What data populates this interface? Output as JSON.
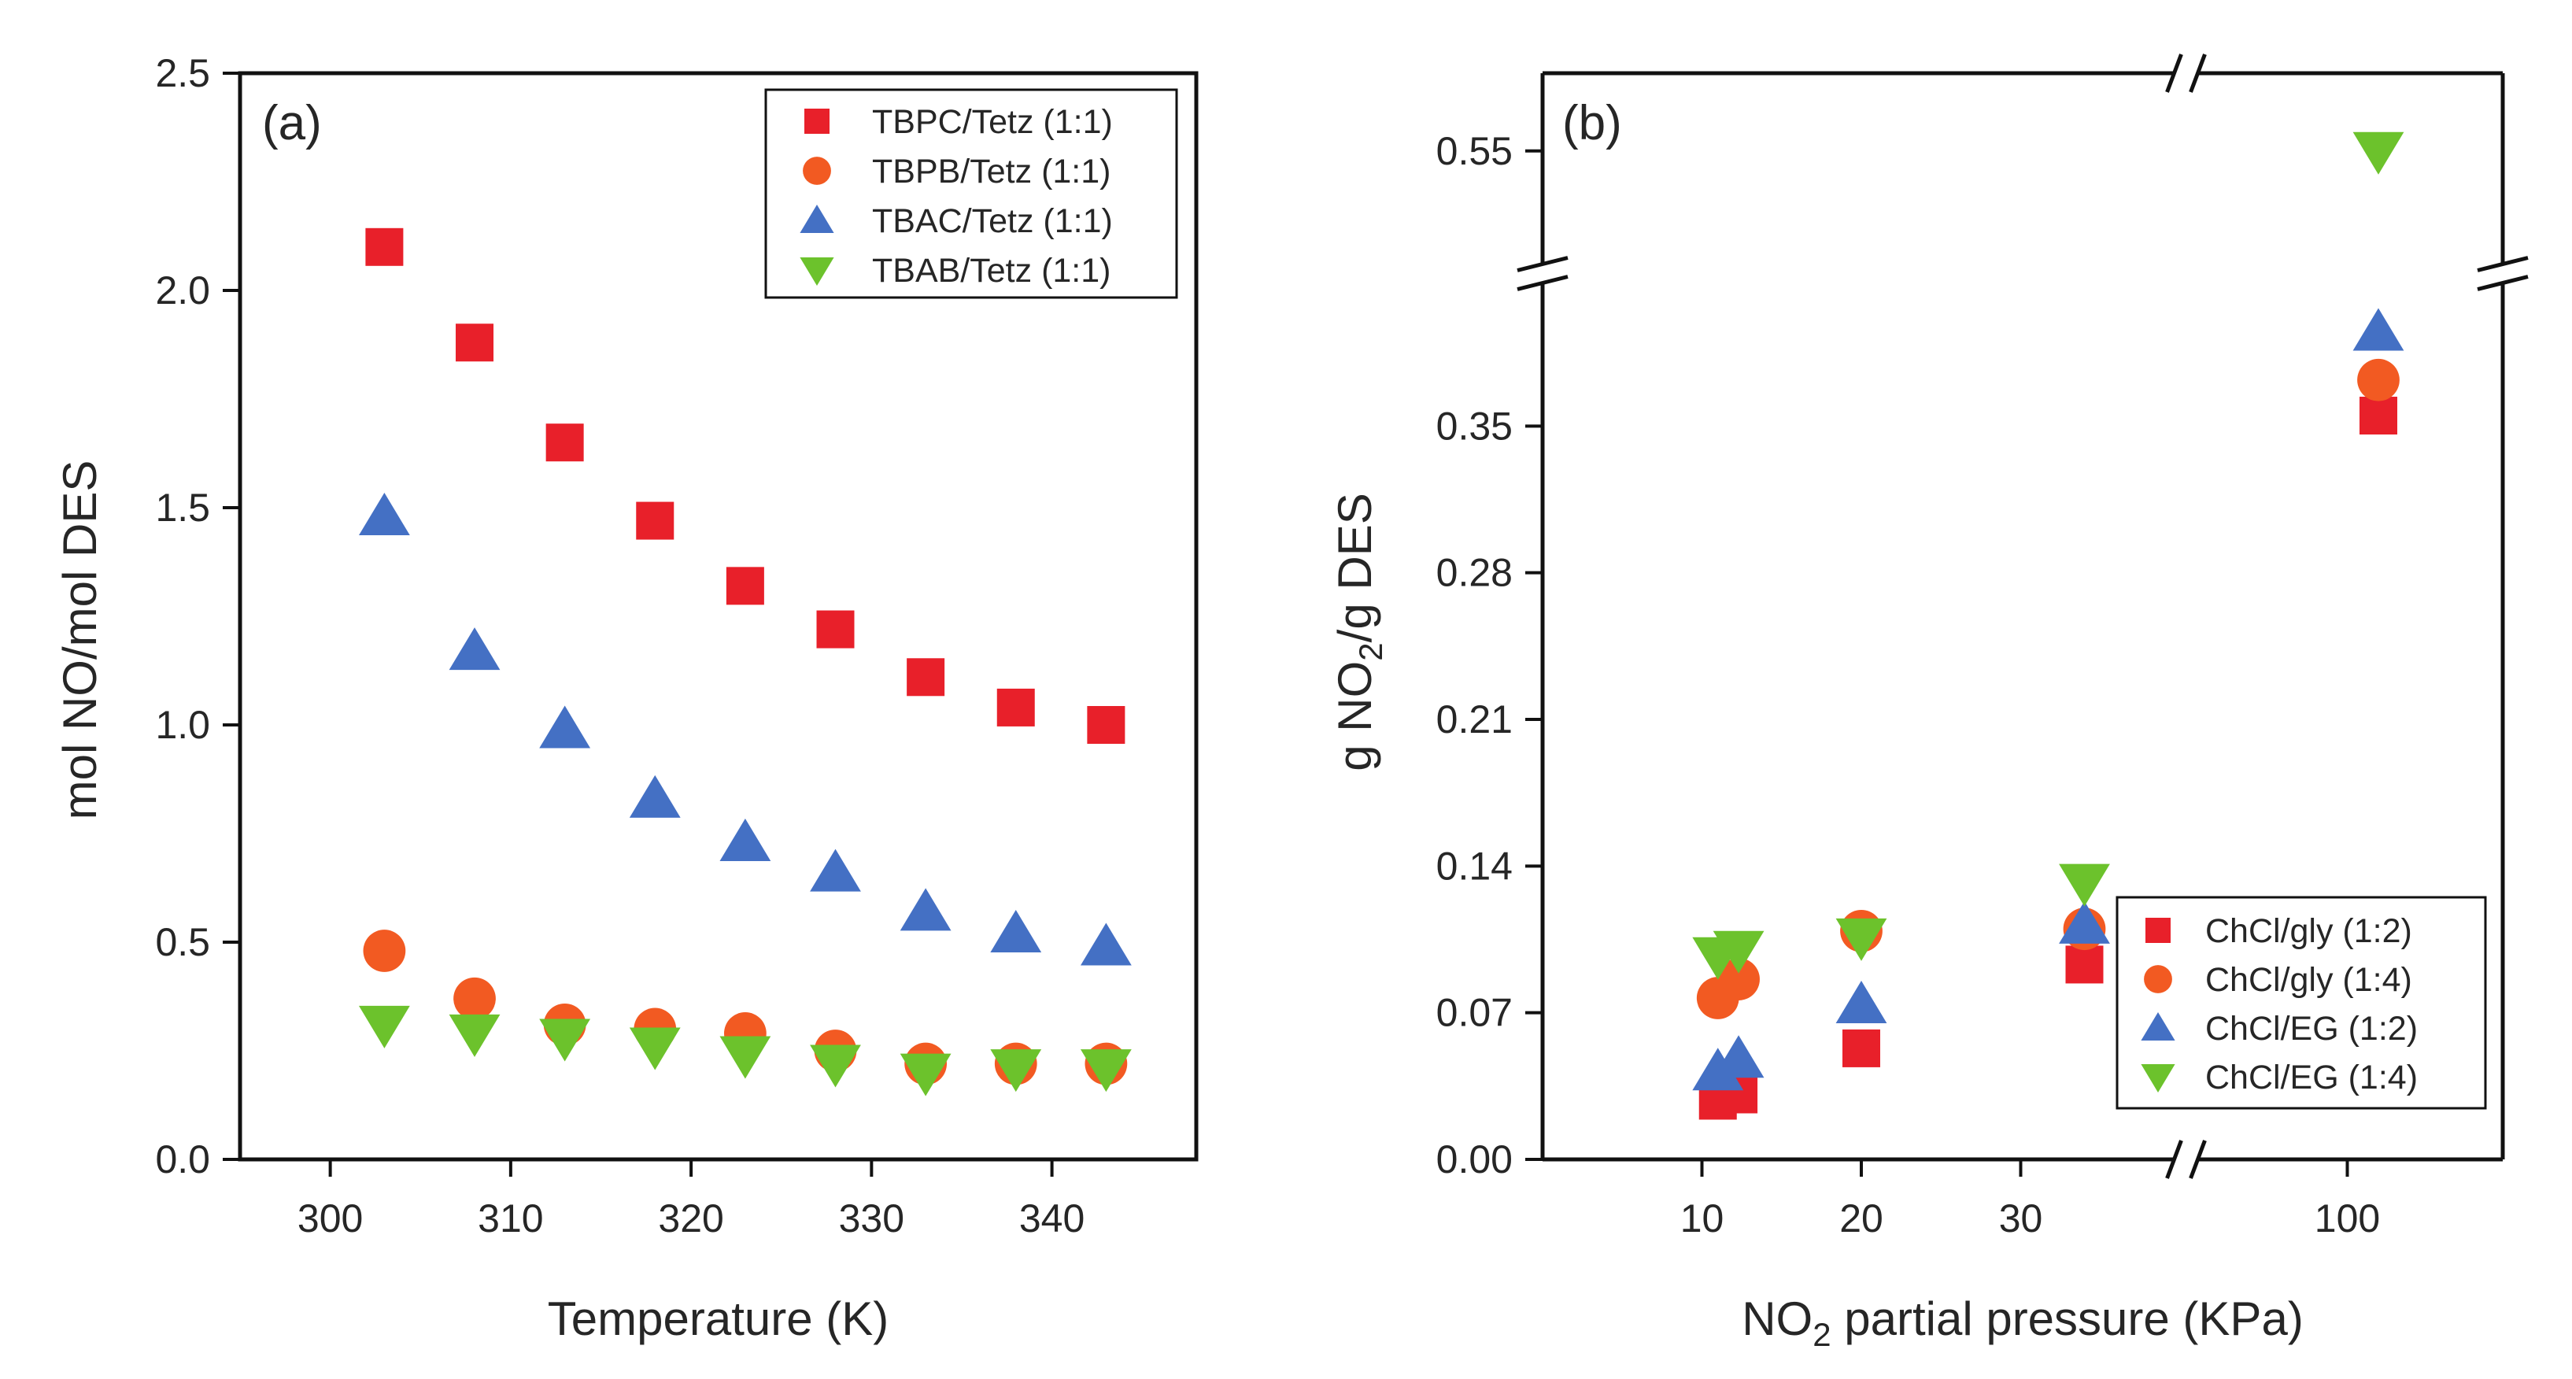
{
  "colors": {
    "red": "#e8202a",
    "orange": "#f25a22",
    "blue": "#4470c4",
    "green": "#6cc22c",
    "axis": "#111111"
  },
  "chart_data": [
    {
      "type": "scatter",
      "panel_label": "(a)",
      "xlabel": "Temperature (K)",
      "ylabel": "mol NO/mol DES",
      "xlim": [
        295,
        348
      ],
      "ylim": [
        0,
        2.5
      ],
      "xticks": [
        300,
        310,
        320,
        330,
        340
      ],
      "xtick_labels": [
        "300",
        "310",
        "320",
        "330",
        "340"
      ],
      "yticks": [
        0,
        0.5,
        1.0,
        1.5,
        2.0,
        2.5
      ],
      "ytick_labels": [
        "0.0",
        "0.5",
        "1.0",
        "1.5",
        "2.0",
        "2.5"
      ],
      "legend_position": "top-right",
      "series": [
        {
          "name": "TBPC/Tetz (1:1)",
          "marker": "square",
          "color": "#e8202a",
          "x": [
            303,
            308,
            313,
            318,
            323,
            328,
            333,
            338,
            343
          ],
          "y": [
            2.1,
            1.88,
            1.65,
            1.47,
            1.32,
            1.22,
            1.11,
            1.04,
            1.0
          ]
        },
        {
          "name": "TBPB/Tetz (1:1)",
          "marker": "circle",
          "color": "#f25a22",
          "x": [
            303,
            308,
            313,
            318,
            323,
            328,
            333,
            338,
            343
          ],
          "y": [
            0.48,
            0.37,
            0.31,
            0.3,
            0.29,
            0.25,
            0.22,
            0.22,
            0.22
          ]
        },
        {
          "name": "TBAC/Tetz (1:1)",
          "marker": "triangle-up",
          "color": "#4470c4",
          "x": [
            303,
            308,
            313,
            318,
            323,
            328,
            333,
            338,
            343
          ],
          "y": [
            1.48,
            1.17,
            0.99,
            0.83,
            0.73,
            0.66,
            0.57,
            0.52,
            0.49
          ]
        },
        {
          "name": "TBAB/Tetz (1:1)",
          "marker": "triangle-down",
          "color": "#6cc22c",
          "x": [
            303,
            308,
            313,
            318,
            323,
            328,
            333,
            338,
            343
          ],
          "y": [
            0.31,
            0.29,
            0.28,
            0.26,
            0.24,
            0.22,
            0.2,
            0.21,
            0.21
          ]
        }
      ]
    },
    {
      "type": "scatter",
      "panel_label": "(b)",
      "xlabel_prefix": "NO",
      "xlabel_sub": "2",
      "xlabel_suffix": " partial pressure (KPa)",
      "ylabel_prefix": "g NO",
      "ylabel_sub": "2",
      "ylabel_suffix": "/g DES",
      "x_broken": true,
      "y_broken": true,
      "xlim_lower": [
        0,
        40
      ],
      "xlim_upper": [
        95,
        105
      ],
      "ylim_lower": [
        0,
        0.42
      ],
      "ylim_upper": [
        0.52,
        0.57
      ],
      "xticks": [
        10,
        20,
        30,
        100
      ],
      "xtick_labels": [
        "10",
        "20",
        "30",
        "100"
      ],
      "yticks": [
        0.0,
        0.07,
        0.14,
        0.21,
        0.28,
        0.35,
        0.55
      ],
      "ytick_labels": [
        "0.00",
        "0.07",
        "0.14",
        "0.21",
        "0.28",
        "0.35",
        "0.55"
      ],
      "legend_position": "bottom-right",
      "series": [
        {
          "name": "ChCl/gly (1:2)",
          "marker": "square",
          "color": "#e8202a",
          "x": [
            11,
            12.3,
            20,
            34,
            101
          ],
          "y": [
            0.028,
            0.031,
            0.053,
            0.093,
            0.355
          ]
        },
        {
          "name": "ChCl/gly (1:4)",
          "marker": "circle",
          "color": "#f25a22",
          "x": [
            11,
            12.3,
            20,
            34,
            101
          ],
          "y": [
            0.077,
            0.086,
            0.109,
            0.11,
            0.372
          ]
        },
        {
          "name": "ChCl/EG (1:2)",
          "marker": "triangle-up",
          "color": "#4470c4",
          "x": [
            11,
            12.3,
            20,
            34,
            101
          ],
          "y": [
            0.042,
            0.048,
            0.074,
            0.112,
            0.395
          ]
        },
        {
          "name": "ChCl/EG (1:4)",
          "marker": "triangle-down",
          "color": "#6cc22c",
          "x": [
            11,
            12.3,
            20,
            34,
            101
          ],
          "y": [
            0.097,
            0.1,
            0.106,
            0.132,
            0.55
          ]
        }
      ]
    }
  ]
}
